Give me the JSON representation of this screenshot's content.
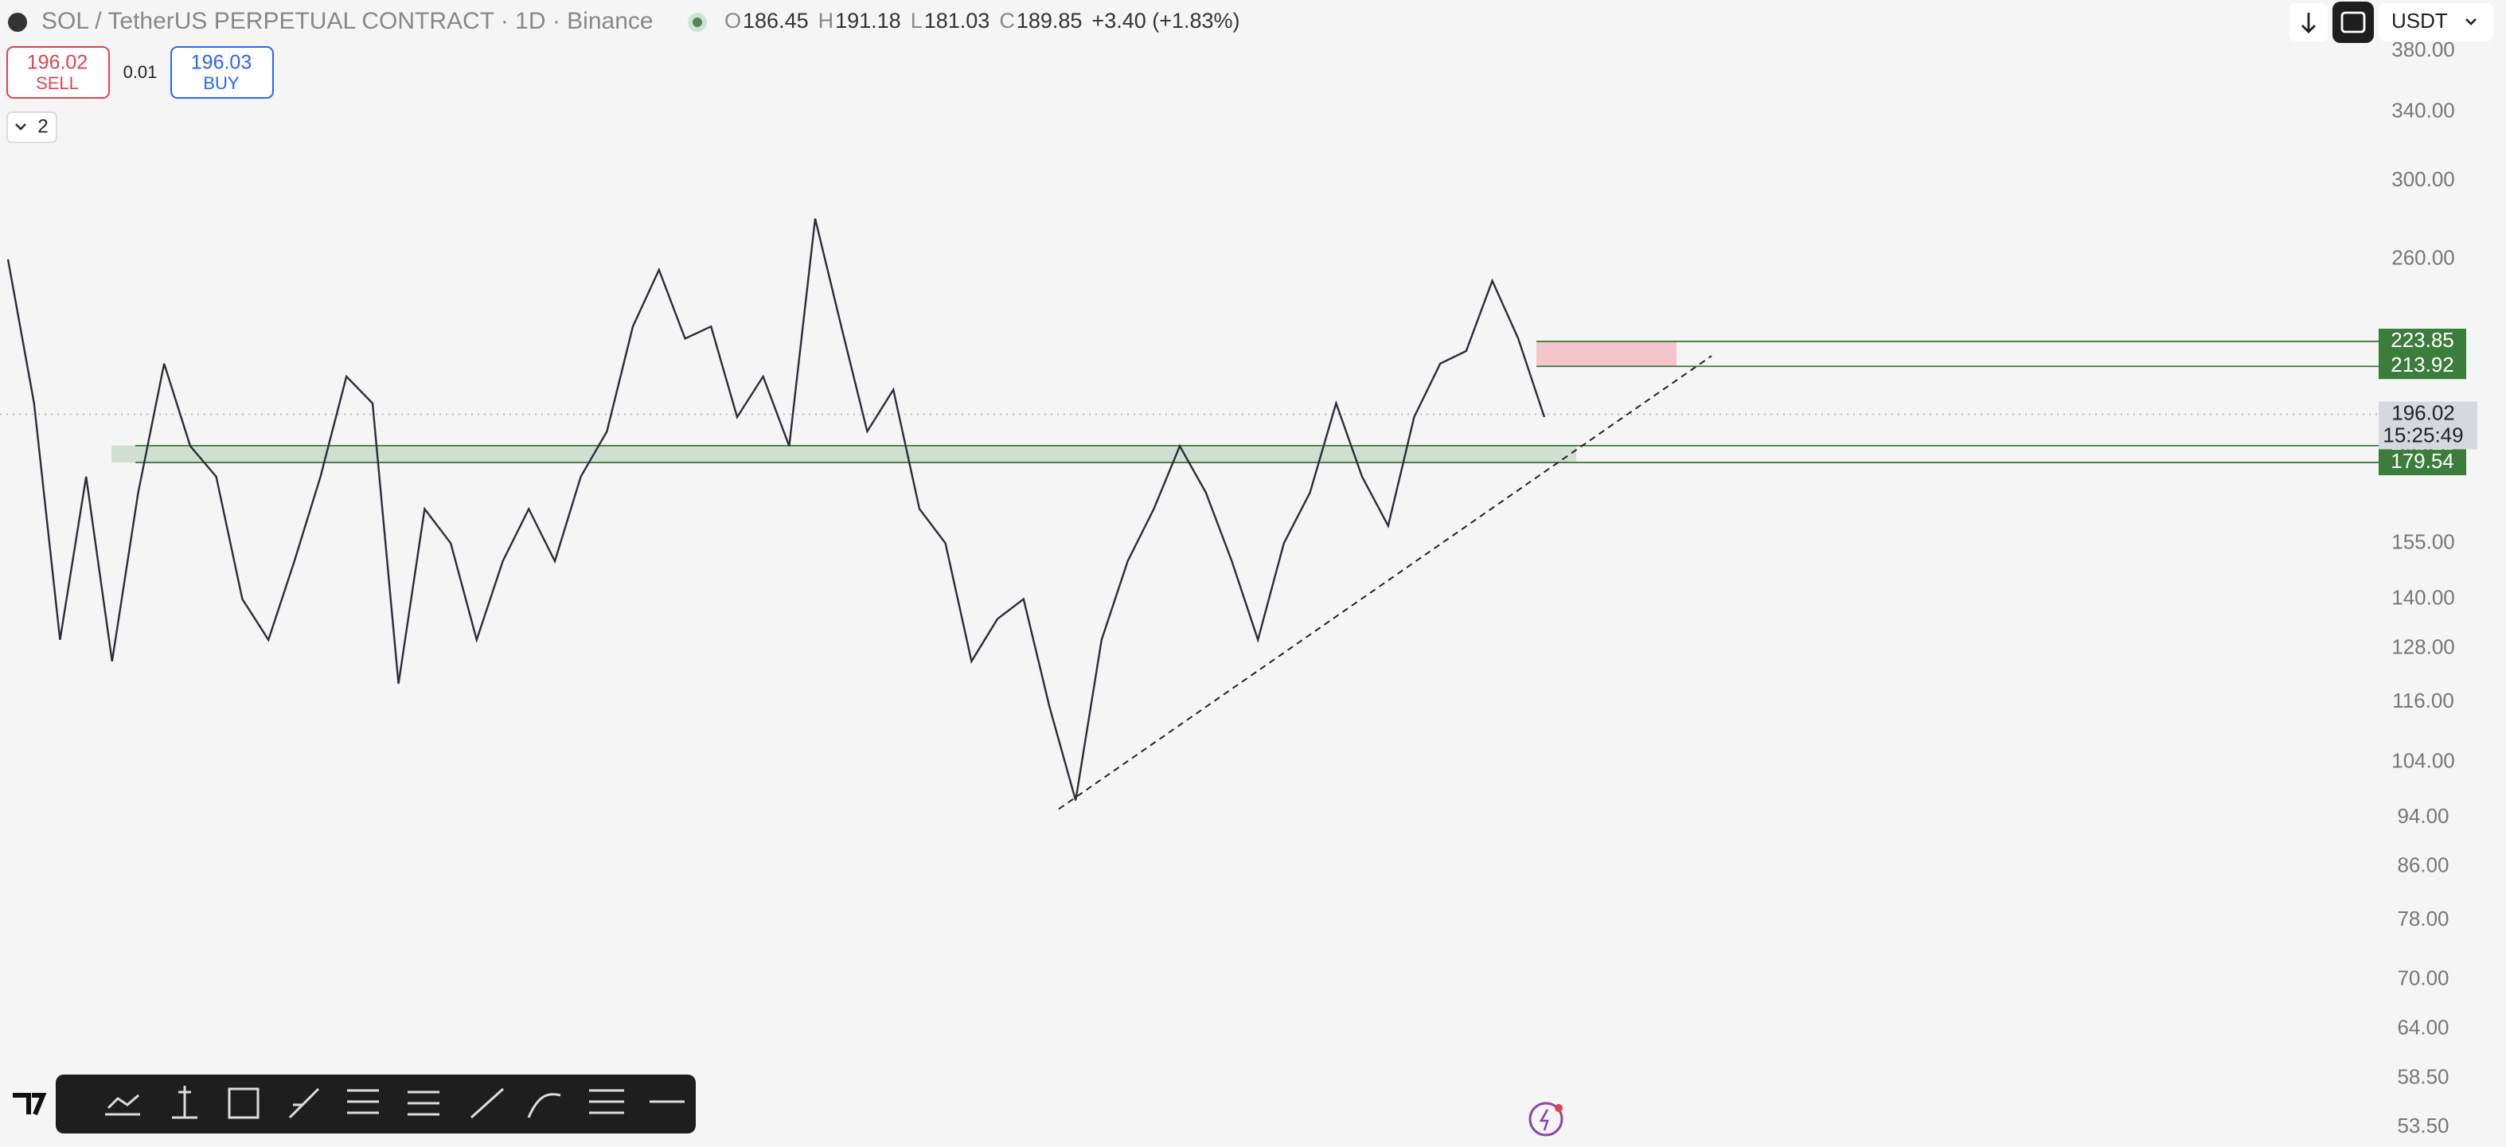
{
  "header": {
    "symbol": "SOL / TetherUS PERPETUAL CONTRACT · 1D · Binance",
    "ohlc": [
      {
        "key": "O",
        "value": "186.45"
      },
      {
        "key": "H",
        "value": "191.18"
      },
      {
        "key": "L",
        "value": "181.03"
      },
      {
        "key": "C",
        "value": "189.85"
      }
    ],
    "change": "+3.40 (+1.83%)"
  },
  "trade": {
    "sell_price": "196.02",
    "sell": "SELL",
    "qty": "0.01",
    "buy_price": "196.03",
    "buy": "BUY"
  },
  "indicators_toggle": "2",
  "currency": "USDT",
  "chart_data": {
    "type": "line",
    "log_scale": true,
    "color": "#2a2e39",
    "ylim": [
      53.5,
      380
    ],
    "yticks": [
      {
        "value": 380,
        "label": "380.00"
      },
      {
        "value": 340,
        "label": "340.00"
      },
      {
        "value": 300,
        "label": "300.00"
      },
      {
        "value": 260,
        "label": "260.00"
      },
      {
        "value": 155,
        "label": "155.00"
      },
      {
        "value": 140,
        "label": "140.00"
      },
      {
        "value": 128,
        "label": "128.00"
      },
      {
        "value": 116,
        "label": "116.00"
      },
      {
        "value": 104,
        "label": "104.00"
      },
      {
        "value": 94,
        "label": "94.00"
      },
      {
        "value": 86,
        "label": "86.00"
      },
      {
        "value": 78,
        "label": "78.00"
      },
      {
        "value": 70,
        "label": "70.00"
      },
      {
        "value": 64,
        "label": "64.00"
      },
      {
        "value": 58.5,
        "label": "58.50"
      },
      {
        "value": 53.5,
        "label": "53.50"
      }
    ],
    "values": [
      260,
      200,
      130,
      175,
      125,
      170,
      215,
      185,
      175,
      140,
      130,
      150,
      175,
      210,
      200,
      120,
      165,
      155,
      130,
      150,
      165,
      150,
      175,
      190,
      230,
      255,
      225,
      230,
      195,
      210,
      185,
      280,
      230,
      190,
      205,
      165,
      155,
      125,
      135,
      140,
      115,
      97,
      130,
      150,
      165,
      185,
      170,
      150,
      130,
      155,
      170,
      200,
      175,
      160,
      195,
      215,
      220,
      250,
      225,
      195
    ],
    "support_zone": {
      "low": 179.54,
      "high": 185.15,
      "color": "#2e7d32"
    },
    "resistance_zone": {
      "low": 213.92,
      "high": 223.85,
      "color": "#f4a6b0"
    },
    "trendline": [
      95.5,
      218
    ],
    "levels": [
      223.85,
      213.92,
      185.15,
      179.54
    ],
    "level_color": "#3b7d3b",
    "last_price": 196.02,
    "countdown": "15:25:49"
  }
}
